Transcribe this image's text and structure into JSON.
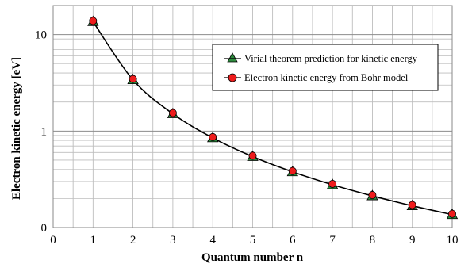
{
  "chart_data": {
    "type": "line",
    "title": "",
    "xlabel": "Quantum number n",
    "ylabel": "Electron kinetic energy [eV]",
    "x_ticks": [
      "0",
      "1",
      "2",
      "3",
      "4",
      "5",
      "6",
      "7",
      "8",
      "9",
      "10"
    ],
    "y_ticks": [
      {
        "value": 10,
        "label": "10"
      },
      {
        "value": 1,
        "label": "1"
      },
      {
        "value": 0.1,
        "label": "0"
      }
    ],
    "xlim": [
      0,
      10
    ],
    "ylim": [
      0.1,
      20
    ],
    "yscale": "log",
    "grid": true,
    "legend_position": "right",
    "x": [
      1,
      2,
      3,
      4,
      5,
      6,
      7,
      8,
      9,
      10
    ],
    "series": [
      {
        "name": "Virial theorem prediction for kinetic energy",
        "marker": "triangle",
        "color": "#2e8b3e",
        "values": [
          13.6,
          3.4,
          1.51,
          0.85,
          0.544,
          0.378,
          0.278,
          0.213,
          0.168,
          0.136
        ]
      },
      {
        "name": "Electron kinetic energy from Bohr model",
        "marker": "circle",
        "color": "#ee1c1c",
        "values": [
          13.6,
          3.4,
          1.51,
          0.85,
          0.544,
          0.378,
          0.278,
          0.213,
          0.168,
          0.136
        ]
      }
    ]
  }
}
